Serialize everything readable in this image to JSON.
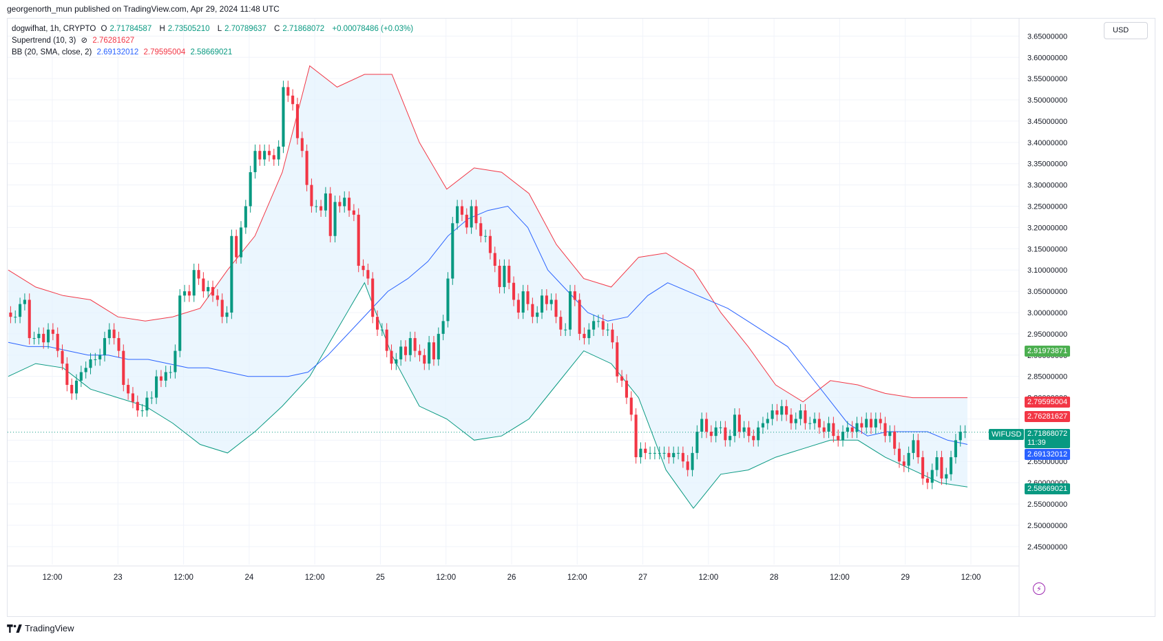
{
  "header": {
    "published_line": "georgenorth_mun published on TradingView.com, Apr 29, 2024 11:48 UTC"
  },
  "legend": {
    "symbol": "dogwifhat, 1h, CRYPTO",
    "ohlc": {
      "o_label": "O",
      "o": "2.71784587",
      "h_label": "H",
      "h": "2.73505210",
      "l_label": "L",
      "l": "2.70789637",
      "c_label": "C",
      "c": "2.71868072",
      "change": "+0.00078486 (+0.03%)"
    },
    "supertrend": {
      "label": "Supertrend (10, 3)",
      "icon": "⊘",
      "value": "2.76281627"
    },
    "bb": {
      "label": "BB (20, SMA, close, 2)",
      "basis": "2.69132012",
      "upper": "2.79595004",
      "lower": "2.58669021"
    }
  },
  "currency_button": "USD",
  "price_tags": {
    "supertrend_up_value": "2.91973871",
    "bb_upper": "2.79595004",
    "supertrend_down": "2.76281627",
    "symbol": "WIFUSD",
    "last_price": "2.71868072",
    "countdown": "11:39",
    "bb_basis": "2.69132012",
    "bb_lower": "2.58669021"
  },
  "footer": {
    "brand": "TradingView"
  },
  "colors": {
    "up": "#089981",
    "down": "#f23645",
    "bb_basis": "#2962ff",
    "bb_band": "#f23645",
    "bb_lower_band": "#089981",
    "supertrend_up": "#4caf50",
    "supertrend_down": "#f23645",
    "bb_fill": "#e3f2fd",
    "st_up_fill": "#e8f5e9",
    "st_down_fill": "#fde7ea",
    "grid": "#f0f3fa",
    "axis_text": "#131722"
  },
  "chart_data": {
    "type": "candlestick",
    "title": "dogwifhat, 1h, CRYPTO",
    "y_axis": {
      "ticks": [
        "3.65000000",
        "3.60000000",
        "3.55000000",
        "3.50000000",
        "3.45000000",
        "3.40000000",
        "3.35000000",
        "3.30000000",
        "3.25000000",
        "3.20000000",
        "3.15000000",
        "3.10000000",
        "3.05000000",
        "3.00000000",
        "2.95000000",
        "2.90000000",
        "2.85000000",
        "2.80000000",
        "2.75000000",
        "2.70000000",
        "2.65000000",
        "2.60000000",
        "2.55000000",
        "2.50000000",
        "2.45000000"
      ],
      "range": [
        2.44,
        3.67
      ]
    },
    "x_axis": {
      "ticks": [
        "12:00",
        "23",
        "12:00",
        "24",
        "12:00",
        "25",
        "12:00",
        "26",
        "12:00",
        "27",
        "12:00",
        "28",
        "12:00",
        "29",
        "12:00"
      ]
    },
    "grid": true,
    "close": [
      2.99,
      2.99,
      3.02,
      3.03,
      2.94,
      2.94,
      2.95,
      2.93,
      2.96,
      2.95,
      2.91,
      2.88,
      2.83,
      2.81,
      2.84,
      2.86,
      2.87,
      2.89,
      2.89,
      2.9,
      2.94,
      2.96,
      2.94,
      2.91,
      2.83,
      2.81,
      2.79,
      2.77,
      2.77,
      2.8,
      2.8,
      2.85,
      2.84,
      2.86,
      2.86,
      2.91,
      3.04,
      3.05,
      3.04,
      3.1,
      3.08,
      3.05,
      3.06,
      3.04,
      3.03,
      2.99,
      3.0,
      3.18,
      3.13,
      3.2,
      3.25,
      3.33,
      3.38,
      3.36,
      3.38,
      3.37,
      3.36,
      3.39,
      3.53,
      3.51,
      3.49,
      3.41,
      3.38,
      3.3,
      3.25,
      3.25,
      3.24,
      3.28,
      3.18,
      3.26,
      3.25,
      3.27,
      3.24,
      3.23,
      3.11,
      3.1,
      3.08,
      2.99,
      2.96,
      2.96,
      2.91,
      2.88,
      2.89,
      2.92,
      2.9,
      2.94,
      2.91,
      2.9,
      2.88,
      2.93,
      2.89,
      2.95,
      2.98,
      3.08,
      3.21,
      3.25,
      3.23,
      3.2,
      3.25,
      3.21,
      3.18,
      3.18,
      3.14,
      3.11,
      3.06,
      3.11,
      3.07,
      3.03,
      3.0,
      3.05,
      3.02,
      2.99,
      3.0,
      3.04,
      3.02,
      3.03,
      2.99,
      2.96,
      2.96,
      3.05,
      3.03,
      2.95,
      2.94,
      2.96,
      2.98,
      2.98,
      2.96,
      2.96,
      2.93,
      2.85,
      2.84,
      2.8,
      2.76,
      2.66,
      2.68,
      2.67,
      2.67,
      2.67,
      2.67,
      2.67,
      2.66,
      2.67,
      2.67,
      2.65,
      2.63,
      2.67,
      2.72,
      2.75,
      2.72,
      2.71,
      2.73,
      2.73,
      2.7,
      2.71,
      2.76,
      2.72,
      2.73,
      2.71,
      2.7,
      2.73,
      2.74,
      2.75,
      2.77,
      2.76,
      2.78,
      2.76,
      2.74,
      2.75,
      2.77,
      2.74,
      2.74,
      2.75,
      2.73,
      2.72,
      2.74,
      2.71,
      2.7,
      2.72,
      2.73,
      2.72,
      2.74,
      2.73,
      2.75,
      2.73,
      2.75,
      2.74,
      2.71,
      2.72,
      2.68,
      2.65,
      2.64,
      2.67,
      2.7,
      2.66,
      2.61,
      2.6,
      2.63,
      2.66,
      2.61,
      2.62,
      2.66,
      2.7,
      2.72,
      2.72
    ],
    "bb_basis": [
      2.93,
      2.92,
      2.92,
      2.91,
      2.9,
      2.9,
      2.89,
      2.89,
      2.88,
      2.87,
      2.87,
      2.86,
      2.85,
      2.85,
      2.85,
      2.86,
      2.9,
      2.95,
      3.0,
      3.05,
      3.08,
      3.12,
      3.18,
      3.22,
      3.24,
      3.25,
      3.2,
      3.1,
      3.05,
      3.0,
      2.98,
      2.99,
      3.04,
      3.07,
      3.05,
      3.03,
      3.01,
      2.98,
      2.95,
      2.92,
      2.86,
      2.8,
      2.74,
      2.71,
      2.72,
      2.72,
      2.72,
      2.7,
      2.69
    ],
    "bb_upper": [
      3.1,
      3.06,
      3.04,
      3.03,
      2.99,
      2.98,
      2.99,
      3.01,
      3.1,
      3.18,
      3.33,
      3.58,
      3.53,
      3.56,
      3.56,
      3.4,
      3.29,
      3.34,
      3.33,
      3.28,
      3.16,
      3.08,
      3.06,
      3.13,
      3.14,
      3.1,
      3.0,
      2.92,
      2.83,
      2.79,
      2.84,
      2.83,
      2.81,
      2.8,
      2.8,
      2.8
    ],
    "bb_lower": [
      2.85,
      2.88,
      2.87,
      2.82,
      2.8,
      2.78,
      2.74,
      2.69,
      2.67,
      2.72,
      2.78,
      2.85,
      2.96,
      3.07,
      2.9,
      2.78,
      2.75,
      2.7,
      2.71,
      2.75,
      2.83,
      2.91,
      2.88,
      2.8,
      2.63,
      2.54,
      2.62,
      2.63,
      2.66,
      2.68,
      2.7,
      2.7,
      2.66,
      2.63,
      2.6,
      2.59
    ]
  }
}
